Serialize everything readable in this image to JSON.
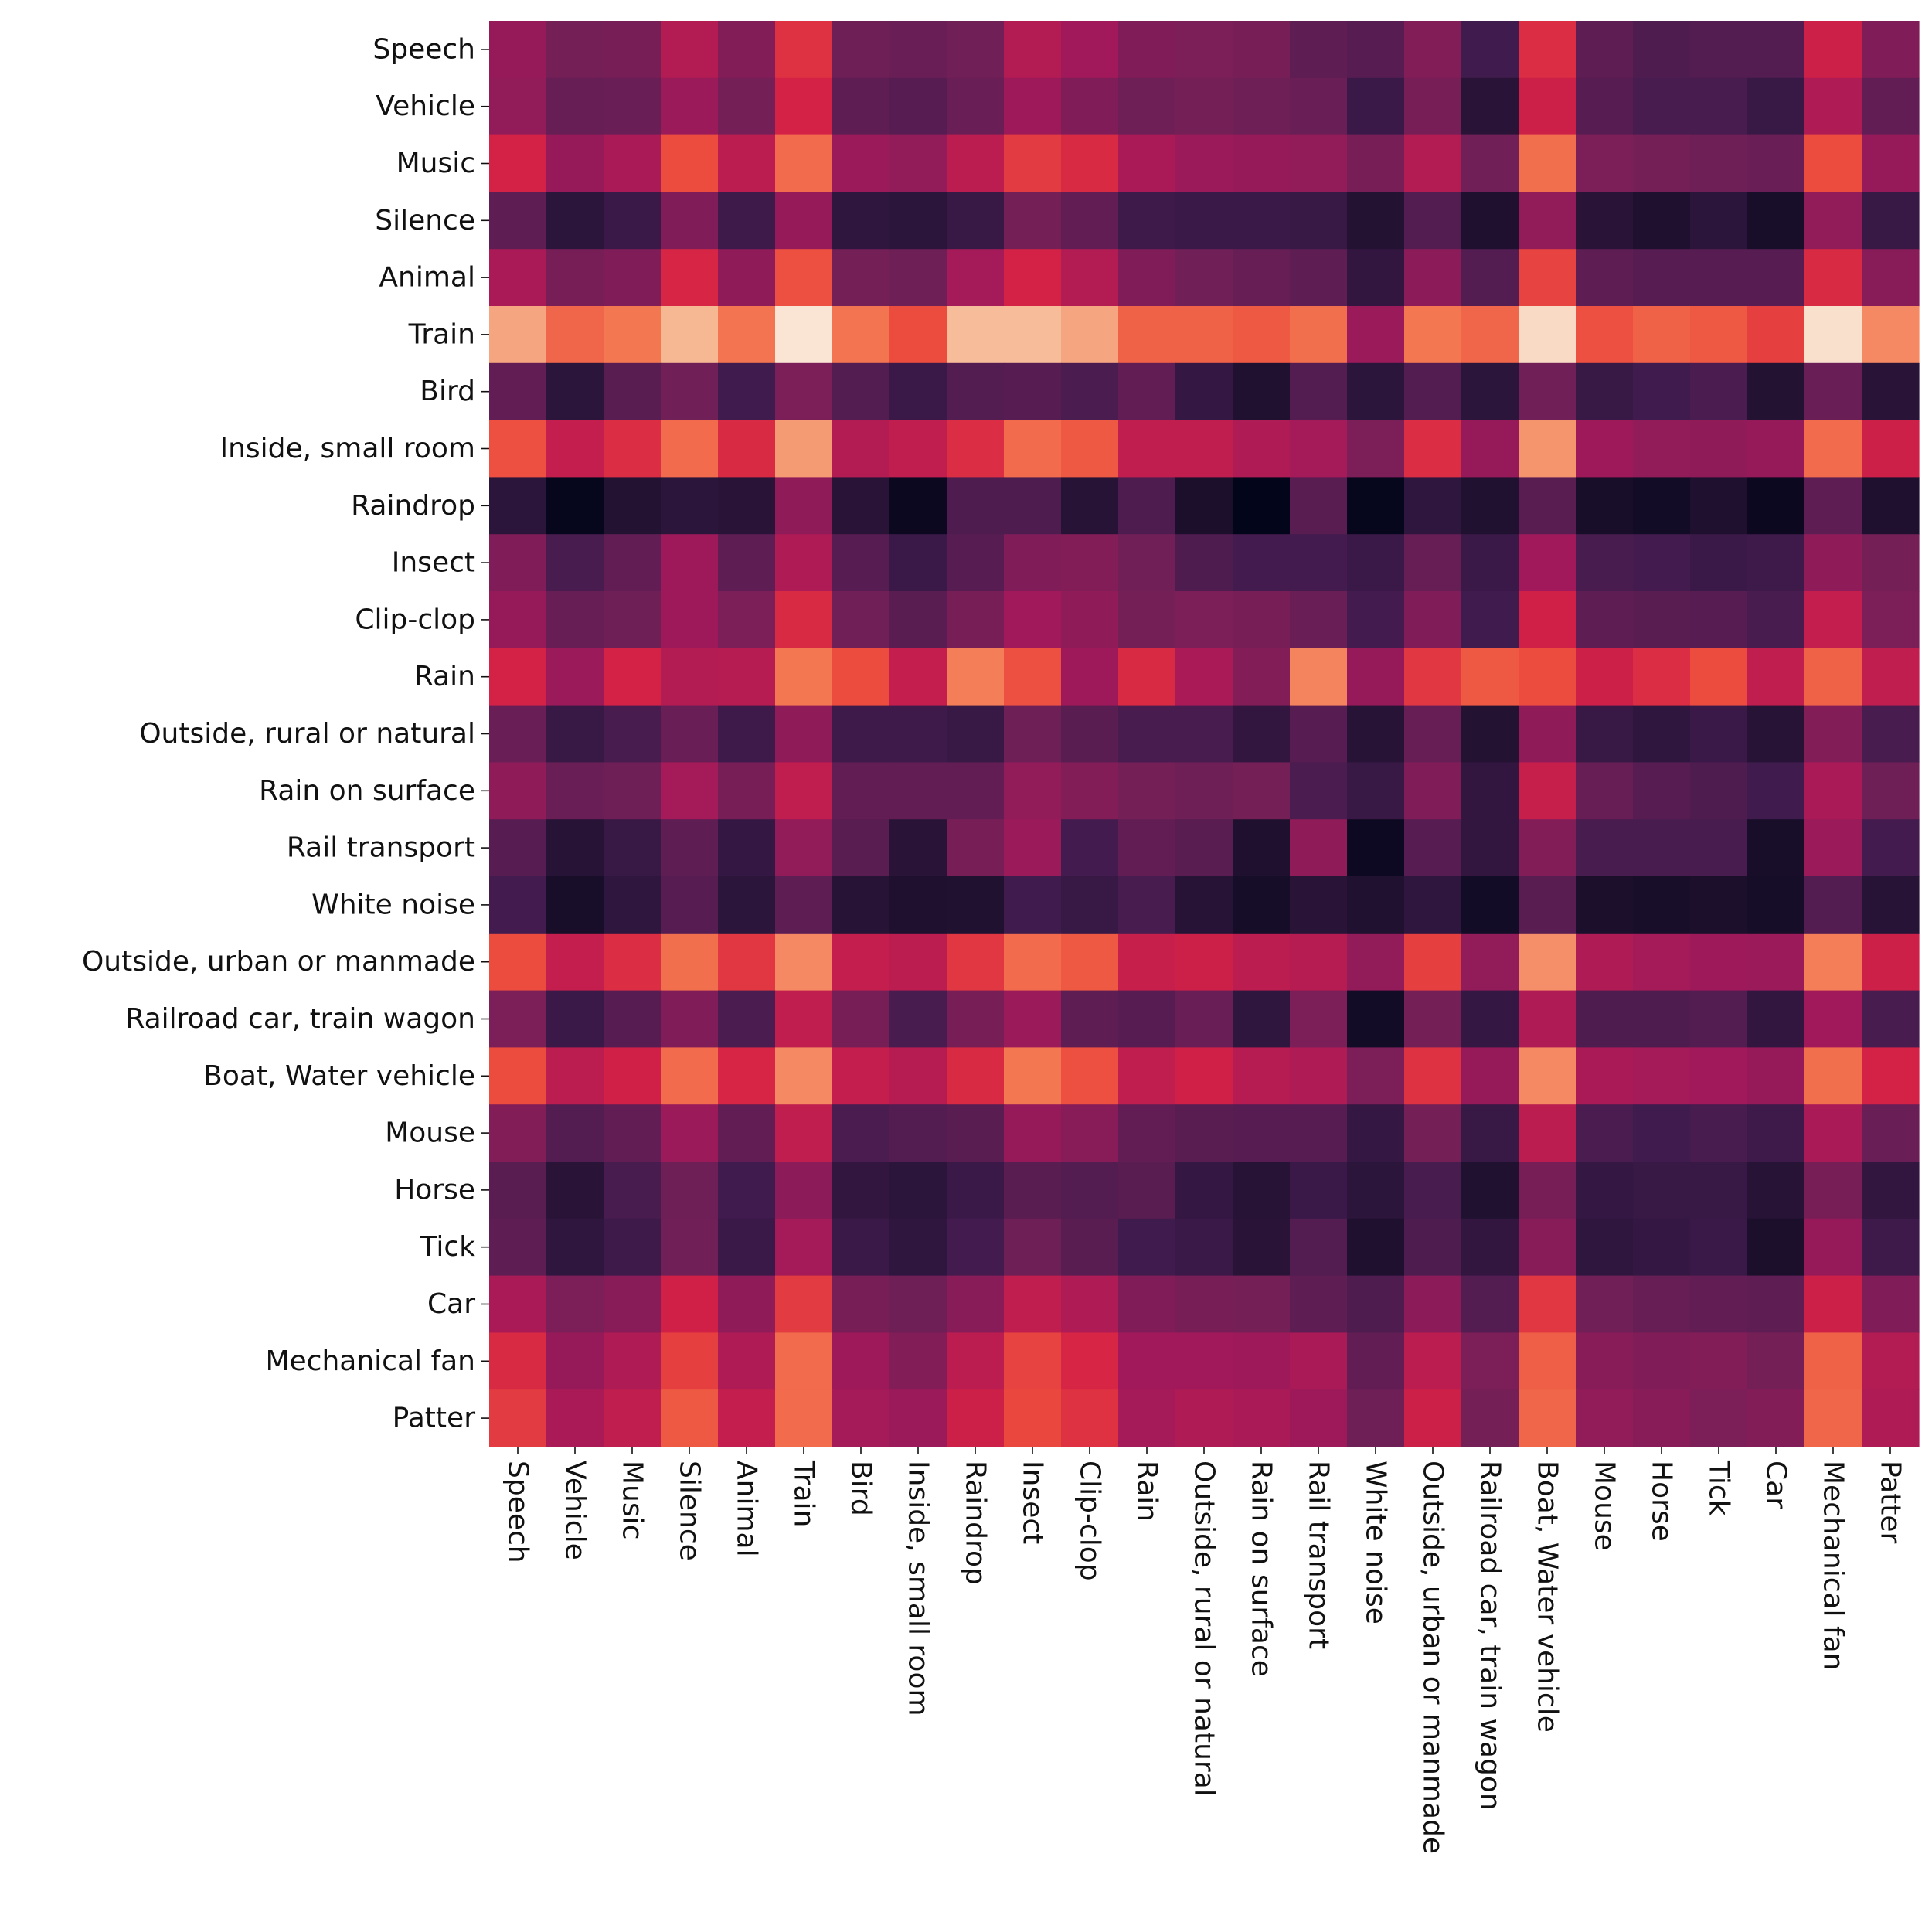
{
  "chart_data": {
    "type": "heatmap",
    "title": "",
    "xlabel": "",
    "ylabel": "",
    "colormap": "rocket",
    "colorbar": false,
    "value_range": [
      0,
      1
    ],
    "rows": [
      "Speech",
      "Vehicle",
      "Music",
      "Silence",
      "Animal",
      "Train",
      "Bird",
      "Inside, small room",
      "Raindrop",
      "Insect",
      "Clip-clop",
      "Rain",
      "Outside, rural or natural",
      "Rain on surface",
      "Rail transport",
      "White noise",
      "Outside, urban or manmade",
      "Railroad car, train wagon",
      "Boat, Water vehicle",
      "Mouse",
      "Horse",
      "Tick",
      "Car",
      "Mechanical fan",
      "Patter"
    ],
    "columns": [
      "Speech",
      "Vehicle",
      "Music",
      "Silence",
      "Animal",
      "Train",
      "Bird",
      "Inside, small room",
      "Raindrop",
      "Insect",
      "Clip-clop",
      "Rain",
      "Outside, rural or natural",
      "Rain on surface",
      "Rail transport",
      "White noise",
      "Outside, urban or manmade",
      "Railroad car, train wagon",
      "Boat, Water vehicle",
      "Mouse",
      "Horse",
      "Tick",
      "Car",
      "Mechanical fan",
      "Patter"
    ],
    "values": [
      [
        0.45,
        0.36,
        0.37,
        0.52,
        0.4,
        0.64,
        0.34,
        0.33,
        0.35,
        0.52,
        0.48,
        0.39,
        0.38,
        0.37,
        0.3,
        0.28,
        0.4,
        0.22,
        0.63,
        0.3,
        0.26,
        0.27,
        0.27,
        0.58,
        0.39
      ],
      [
        0.44,
        0.32,
        0.33,
        0.46,
        0.36,
        0.6,
        0.3,
        0.28,
        0.33,
        0.47,
        0.39,
        0.34,
        0.36,
        0.34,
        0.33,
        0.2,
        0.37,
        0.14,
        0.58,
        0.28,
        0.24,
        0.24,
        0.19,
        0.51,
        0.31
      ],
      [
        0.6,
        0.45,
        0.5,
        0.7,
        0.54,
        0.77,
        0.46,
        0.44,
        0.54,
        0.66,
        0.62,
        0.5,
        0.46,
        0.45,
        0.44,
        0.37,
        0.52,
        0.35,
        0.78,
        0.38,
        0.36,
        0.34,
        0.33,
        0.7,
        0.45
      ],
      [
        0.3,
        0.15,
        0.2,
        0.39,
        0.21,
        0.45,
        0.16,
        0.15,
        0.19,
        0.36,
        0.31,
        0.21,
        0.2,
        0.2,
        0.19,
        0.12,
        0.27,
        0.1,
        0.44,
        0.14,
        0.1,
        0.15,
        0.08,
        0.44,
        0.19
      ],
      [
        0.5,
        0.37,
        0.39,
        0.61,
        0.43,
        0.71,
        0.36,
        0.34,
        0.49,
        0.6,
        0.52,
        0.39,
        0.35,
        0.32,
        0.3,
        0.17,
        0.42,
        0.27,
        0.68,
        0.3,
        0.28,
        0.28,
        0.28,
        0.62,
        0.41
      ],
      [
        0.88,
        0.76,
        0.8,
        0.91,
        0.79,
        0.99,
        0.79,
        0.7,
        0.92,
        0.92,
        0.88,
        0.75,
        0.75,
        0.73,
        0.78,
        0.46,
        0.8,
        0.76,
        0.97,
        0.71,
        0.75,
        0.73,
        0.67,
        0.98,
        0.83
      ],
      [
        0.31,
        0.15,
        0.29,
        0.35,
        0.22,
        0.38,
        0.27,
        0.2,
        0.27,
        0.28,
        0.25,
        0.31,
        0.18,
        0.11,
        0.27,
        0.15,
        0.27,
        0.15,
        0.35,
        0.19,
        0.22,
        0.25,
        0.12,
        0.33,
        0.14
      ],
      [
        0.71,
        0.56,
        0.63,
        0.77,
        0.62,
        0.86,
        0.52,
        0.55,
        0.63,
        0.77,
        0.73,
        0.55,
        0.55,
        0.51,
        0.49,
        0.38,
        0.63,
        0.45,
        0.85,
        0.47,
        0.44,
        0.43,
        0.45,
        0.77,
        0.58
      ],
      [
        0.15,
        0.01,
        0.12,
        0.15,
        0.14,
        0.43,
        0.14,
        0.03,
        0.26,
        0.26,
        0.13,
        0.26,
        0.09,
        0.0,
        0.29,
        0.01,
        0.16,
        0.11,
        0.29,
        0.08,
        0.06,
        0.1,
        0.03,
        0.3,
        0.1
      ],
      [
        0.39,
        0.24,
        0.31,
        0.47,
        0.3,
        0.51,
        0.28,
        0.2,
        0.28,
        0.39,
        0.4,
        0.35,
        0.26,
        0.23,
        0.23,
        0.2,
        0.32,
        0.2,
        0.48,
        0.24,
        0.23,
        0.2,
        0.21,
        0.43,
        0.36
      ],
      [
        0.45,
        0.32,
        0.34,
        0.47,
        0.38,
        0.62,
        0.35,
        0.29,
        0.37,
        0.48,
        0.43,
        0.36,
        0.38,
        0.37,
        0.33,
        0.23,
        0.39,
        0.22,
        0.59,
        0.3,
        0.29,
        0.28,
        0.24,
        0.56,
        0.38
      ],
      [
        0.6,
        0.46,
        0.6,
        0.52,
        0.53,
        0.8,
        0.7,
        0.56,
        0.81,
        0.71,
        0.47,
        0.62,
        0.5,
        0.4,
        0.82,
        0.45,
        0.65,
        0.73,
        0.7,
        0.58,
        0.63,
        0.7,
        0.55,
        0.75,
        0.55
      ],
      [
        0.33,
        0.19,
        0.24,
        0.33,
        0.21,
        0.43,
        0.21,
        0.21,
        0.19,
        0.34,
        0.29,
        0.24,
        0.24,
        0.17,
        0.28,
        0.13,
        0.32,
        0.12,
        0.43,
        0.19,
        0.16,
        0.2,
        0.13,
        0.4,
        0.24
      ],
      [
        0.43,
        0.33,
        0.34,
        0.49,
        0.37,
        0.55,
        0.31,
        0.31,
        0.31,
        0.44,
        0.4,
        0.36,
        0.34,
        0.36,
        0.25,
        0.19,
        0.39,
        0.17,
        0.57,
        0.32,
        0.28,
        0.26,
        0.22,
        0.5,
        0.34
      ],
      [
        0.28,
        0.13,
        0.19,
        0.3,
        0.18,
        0.44,
        0.29,
        0.14,
        0.37,
        0.46,
        0.23,
        0.31,
        0.29,
        0.1,
        0.43,
        0.04,
        0.28,
        0.17,
        0.4,
        0.24,
        0.24,
        0.24,
        0.08,
        0.46,
        0.23
      ],
      [
        0.23,
        0.08,
        0.16,
        0.28,
        0.15,
        0.3,
        0.13,
        0.1,
        0.11,
        0.22,
        0.19,
        0.24,
        0.13,
        0.07,
        0.14,
        0.11,
        0.16,
        0.06,
        0.29,
        0.09,
        0.08,
        0.09,
        0.07,
        0.27,
        0.13
      ],
      [
        0.7,
        0.56,
        0.63,
        0.78,
        0.65,
        0.83,
        0.56,
        0.54,
        0.65,
        0.77,
        0.73,
        0.57,
        0.58,
        0.54,
        0.53,
        0.44,
        0.67,
        0.44,
        0.84,
        0.51,
        0.49,
        0.47,
        0.46,
        0.81,
        0.58
      ],
      [
        0.38,
        0.2,
        0.28,
        0.39,
        0.25,
        0.55,
        0.37,
        0.24,
        0.37,
        0.46,
        0.3,
        0.28,
        0.33,
        0.16,
        0.38,
        0.06,
        0.36,
        0.18,
        0.51,
        0.26,
        0.26,
        0.27,
        0.17,
        0.48,
        0.24
      ],
      [
        0.7,
        0.54,
        0.59,
        0.77,
        0.61,
        0.83,
        0.56,
        0.53,
        0.62,
        0.8,
        0.71,
        0.55,
        0.59,
        0.53,
        0.51,
        0.38,
        0.64,
        0.45,
        0.83,
        0.5,
        0.49,
        0.48,
        0.45,
        0.78,
        0.6
      ],
      [
        0.4,
        0.27,
        0.31,
        0.46,
        0.31,
        0.55,
        0.25,
        0.27,
        0.29,
        0.45,
        0.41,
        0.31,
        0.29,
        0.28,
        0.28,
        0.18,
        0.36,
        0.19,
        0.54,
        0.25,
        0.22,
        0.24,
        0.21,
        0.5,
        0.33
      ],
      [
        0.29,
        0.14,
        0.24,
        0.34,
        0.22,
        0.42,
        0.17,
        0.15,
        0.2,
        0.29,
        0.27,
        0.29,
        0.18,
        0.13,
        0.2,
        0.15,
        0.24,
        0.11,
        0.37,
        0.18,
        0.19,
        0.19,
        0.13,
        0.37,
        0.17
      ],
      [
        0.3,
        0.16,
        0.21,
        0.35,
        0.2,
        0.49,
        0.2,
        0.16,
        0.23,
        0.34,
        0.29,
        0.22,
        0.2,
        0.14,
        0.27,
        0.1,
        0.26,
        0.17,
        0.41,
        0.16,
        0.18,
        0.2,
        0.09,
        0.45,
        0.21
      ],
      [
        0.5,
        0.38,
        0.41,
        0.59,
        0.43,
        0.66,
        0.37,
        0.34,
        0.41,
        0.55,
        0.51,
        0.39,
        0.37,
        0.36,
        0.3,
        0.26,
        0.42,
        0.27,
        0.65,
        0.35,
        0.32,
        0.31,
        0.3,
        0.58,
        0.39
      ],
      [
        0.62,
        0.45,
        0.51,
        0.67,
        0.51,
        0.77,
        0.47,
        0.4,
        0.54,
        0.68,
        0.61,
        0.48,
        0.48,
        0.47,
        0.5,
        0.31,
        0.54,
        0.38,
        0.74,
        0.41,
        0.39,
        0.4,
        0.36,
        0.75,
        0.52
      ],
      [
        0.66,
        0.5,
        0.55,
        0.73,
        0.56,
        0.77,
        0.49,
        0.46,
        0.58,
        0.69,
        0.64,
        0.49,
        0.51,
        0.5,
        0.47,
        0.34,
        0.58,
        0.36,
        0.76,
        0.44,
        0.41,
        0.38,
        0.4,
        0.76,
        0.51
      ]
    ]
  }
}
